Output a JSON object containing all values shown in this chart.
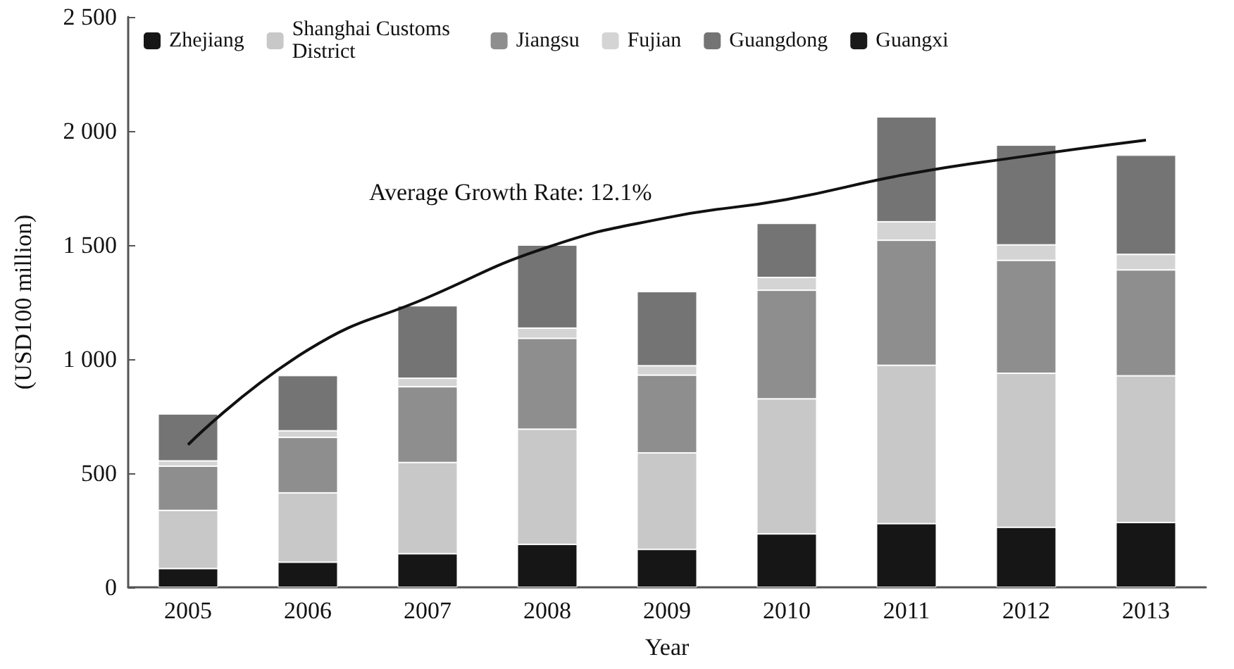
{
  "chart_data": {
    "type": "bar",
    "stacked": true,
    "xlabel": "Year",
    "ylabel": "(USD100 million)",
    "categories": [
      "2005",
      "2006",
      "2007",
      "2008",
      "2009",
      "2010",
      "2011",
      "2012",
      "2013"
    ],
    "series": [
      {
        "name": "Zhejiang",
        "color": "#161616",
        "values": [
          82,
          110,
          147,
          188,
          166,
          234,
          279,
          263,
          284
        ]
      },
      {
        "name": "Shanghai Customs District",
        "color": "#c8c8c8",
        "values": [
          255,
          304,
          400,
          505,
          423,
          592,
          694,
          675,
          643
        ]
      },
      {
        "name": "Jiangsu",
        "color": "#8e8e8e",
        "values": [
          194,
          243,
          332,
          398,
          341,
          476,
          548,
          495,
          464
        ]
      },
      {
        "name": "Fujian",
        "color": "#d4d4d4",
        "values": [
          23,
          29,
          37,
          45,
          41,
          56,
          81,
          68,
          68
        ]
      },
      {
        "name": "Guangdong",
        "color": "#747474",
        "values": [
          206,
          242,
          318,
          364,
          325,
          237,
          460,
          437,
          435
        ]
      },
      {
        "name": "Guangxi",
        "color": "#1a1a1a",
        "values": [
          null,
          null,
          null,
          null,
          null,
          null,
          null,
          null,
          null
        ]
      },
      {
        "type": "line",
        "color": "#111111",
        "values": [
          625,
          1040,
          1270,
          1490,
          1620,
          1700,
          1810,
          1890,
          1960
        ]
      }
    ],
    "ylim": [
      0,
      2500
    ],
    "yticks": [
      0,
      500,
      {
        "value": 1000,
        "label": "1 000"
      },
      {
        "value": 1500,
        "label": "1 500"
      },
      {
        "value": 2000,
        "label": "2 000"
      },
      {
        "value": 2500,
        "label": "2 500"
      }
    ],
    "annotations": [
      "Average Growth Rate: 12.1%"
    ],
    "grid": false,
    "legend": "top",
    "marker": "none",
    "line_style": "solid"
  }
}
